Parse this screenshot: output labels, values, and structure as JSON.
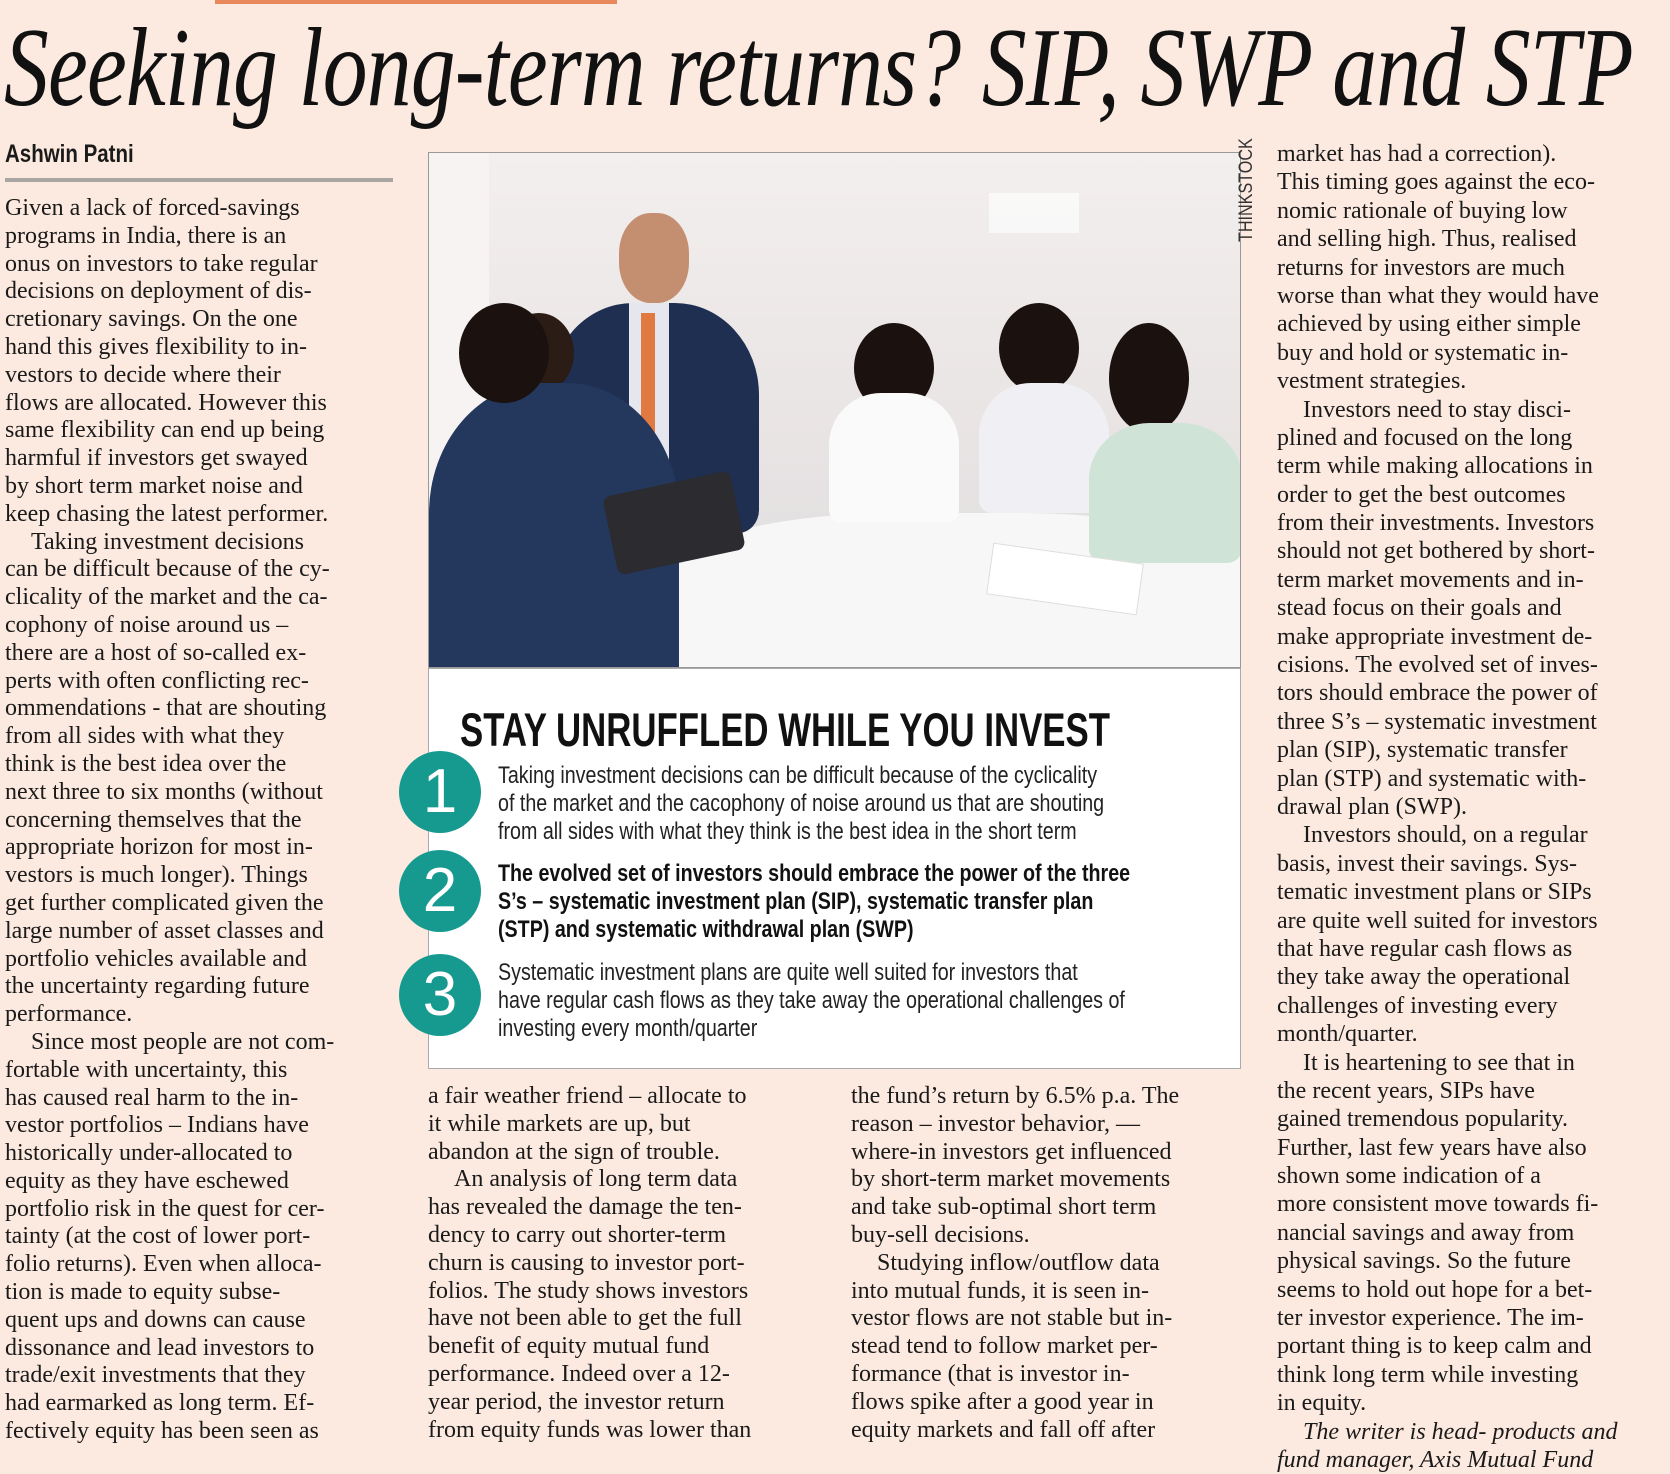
{
  "article": {
    "headline": "Seeking long-term returns? SIP, SWP and STP",
    "byline": "Ashwin Patni",
    "accent_color": "#e8875c",
    "photo_credit": "THINKSTOCK",
    "columns": [
      {
        "paragraphs": [
          [
            "Given a lack of forced-savings",
            "programs in India, there is an",
            "onus on investors to take regular",
            "decisions on deployment of  dis-",
            "cretionary savings. On the one",
            "hand this gives flexibility to in-",
            "vestors to decide where their",
            "flows are allocated. However this",
            "same flexibility can end up being",
            "harmful if  investors get swayed",
            "by short term market noise and",
            "keep chasing the latest performer."
          ],
          [
            "Taking investment decisions",
            "can be difficult because of  the cy-",
            "clicality of  the market and the ca-",
            "cophony of noise around us –",
            "there are a host of  so-called ex-",
            "perts with often conflicting rec-",
            "ommendations - that are shouting",
            "from all sides with what they",
            "think is the best idea over the",
            "next three to six months (without",
            "concerning themselves that the",
            "appropriate horizon for most in-",
            "vestors is much longer). Things",
            "get further complicated given the",
            "large number of  asset classes and",
            "portfolio vehicles available and",
            "the uncertainty regarding future",
            "performance."
          ],
          [
            "Since most people are not com-",
            "fortable with uncertainty, this",
            "has caused real harm to the in-",
            "vestor portfolios – Indians have",
            "historically under-allocated to",
            "equity as they have eschewed",
            "portfolio risk in the quest for cer-",
            "tainty (at the cost of  lower port-",
            "folio returns). Even when alloca-",
            "tion is made to equity subse-",
            "quent ups and downs can cause",
            "dissonance and lead investors to",
            "trade/exit investments that they",
            "had earmarked as long term. Ef-",
            "fectively equity has been seen as"
          ]
        ]
      },
      {
        "paragraphs": [
          [
            "a fair weather friend – allocate to",
            "it while markets are up, but",
            "abandon at the sign of  trouble."
          ],
          [
            "An analysis of  long term data",
            "has revealed the damage the ten-",
            "dency to carry out shorter-term",
            "churn is causing to investor port-",
            "folios. The study shows investors",
            "have not been able to get the full",
            "benefit of  equity mutual fund",
            "performance. Indeed over a 12-",
            "year period, the investor return",
            "from equity funds was lower than"
          ]
        ]
      },
      {
        "paragraphs": [
          [
            "the fund’s return by 6.5% p.a. The",
            "reason – investor behavior, —",
            "where-in investors get influenced",
            "by short-term market movements",
            "and take sub-optimal short term",
            "buy-sell decisions."
          ],
          [
            "Studying inflow/outflow data",
            "into mutual funds, it is seen in-",
            "vestor flows are not stable but in-",
            "stead tend to follow market per-",
            "formance (that is investor in-",
            "flows spike after a good year in",
            "equity markets and fall off  after"
          ]
        ]
      },
      {
        "paragraphs": [
          [
            "market has had a correction).",
            "This timing goes against the eco-",
            "nomic rationale of  buying low",
            "and selling high. Thus, realised",
            "returns for investors are much",
            "worse than what they would have",
            "achieved by using either simple",
            "buy and hold or systematic in-",
            "vestment strategies."
          ],
          [
            "Investors need to stay disci-",
            "plined and focused on the long",
            "term while making allocations in",
            "order to get the best outcomes",
            "from their investments. Investors",
            "should not get bothered by short-",
            "term market movements and in-",
            "stead focus on their goals and",
            "make appropriate investment de-",
            "cisions. The evolved set of  inves-",
            "tors should embrace the power of",
            "three S’s – systematic investment",
            "plan (SIP), systematic transfer",
            "plan (STP) and systematic with-",
            "drawal plan (SWP)."
          ],
          [
            "Investors should, on a regular",
            "basis, invest their savings. Sys-",
            "tematic investment plans or SIPs",
            "are quite well suited for investors",
            "that have regular cash flows as",
            "they take away the operational",
            "challenges of  investing every",
            "month/quarter."
          ],
          [
            "It is heartening to see that in",
            "the recent years, SIPs have",
            "gained tremendous popularity.",
            "Further, last few years have also",
            "shown some indication of  a",
            "more consistent move towards fi-",
            "nancial savings and away from",
            "physical savings. So the future",
            "seems to hold out hope for a bet-",
            "ter investor experience. The im-",
            "portant thing is to keep calm and",
            "think long term while investing",
            "in equity."
          ]
        ],
        "writer_credit": [
          "The writer is head- products and",
          "fund manager, Axis Mutual Fund"
        ]
      }
    ]
  },
  "callout": {
    "title": "STAY UNRUFFLED WHILE YOU INVEST",
    "circle_color": "#16998f",
    "items": [
      {
        "number": "1",
        "bold": false,
        "lines": [
          "Taking investment decisions can be difficult because of the cyclicality",
          "of the market and the cacophony of noise around us that are shouting",
          "from all sides with what they think is the best idea in the short term"
        ]
      },
      {
        "number": "2",
        "bold": true,
        "lines": [
          "The evolved set of investors should embrace the power of the three",
          "S’s – systematic investment plan (SIP), systematic transfer plan",
          "(STP) and systematic withdrawal plan (SWP)"
        ]
      },
      {
        "number": "3",
        "bold": false,
        "lines": [
          "Systematic investment plans are quite well suited for investors that",
          "have regular cash flows as they take away the operational challenges of",
          "investing every month/quarter"
        ]
      }
    ]
  }
}
